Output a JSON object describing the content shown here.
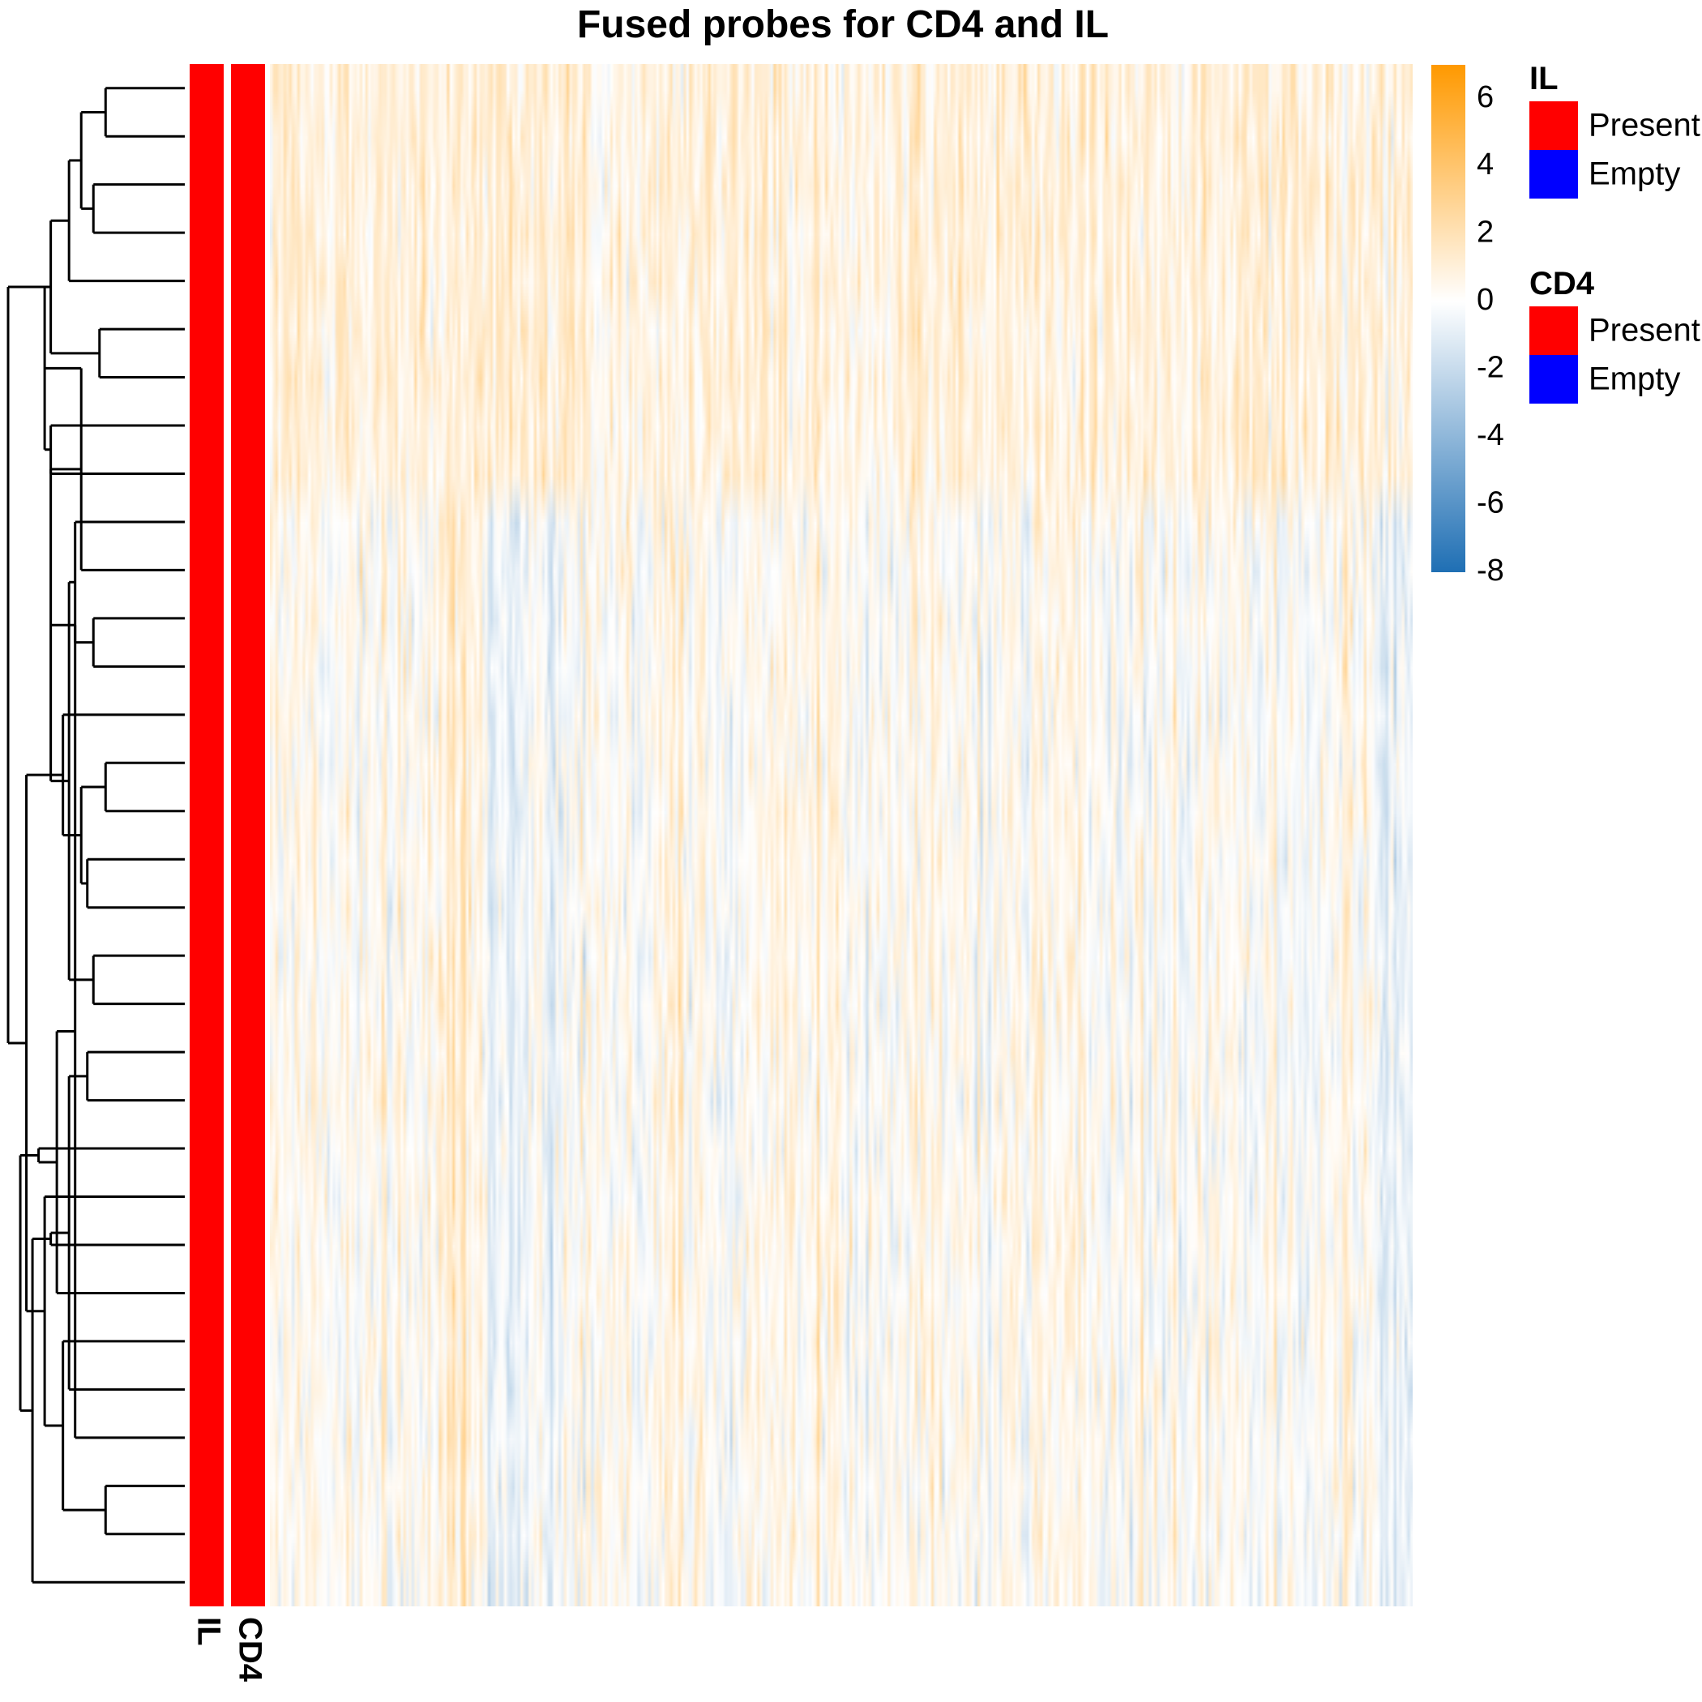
{
  "chart_data": {
    "type": "heatmap",
    "title": "Fused probes for CD4 and IL",
    "n_rows": 32,
    "n_cols": 420,
    "colorbar": {
      "min": -8,
      "max": 7,
      "ticks": [
        6,
        4,
        2,
        0,
        -2,
        -4,
        -6,
        -8
      ],
      "tick_labels": [
        "6",
        "4",
        "2",
        "0",
        "-2",
        "-4",
        "-6",
        "-8"
      ],
      "low_color": "#1f6fb4",
      "mid_color": "#ffffff",
      "high_color": "#ff9900"
    },
    "annotations": [
      {
        "name": "IL",
        "track_label": "IL",
        "values": "Present",
        "legend_title": "IL",
        "levels": [
          {
            "label": "Present",
            "color": "#ff0000"
          },
          {
            "label": "Empty",
            "color": "#0000ff"
          }
        ]
      },
      {
        "name": "CD4",
        "track_label": "CD4",
        "values": "Present",
        "legend_title": "CD4",
        "levels": [
          {
            "label": "Present",
            "color": "#ff0000"
          },
          {
            "label": "Empty",
            "color": "#0000ff"
          }
        ]
      }
    ],
    "row_groups": [
      {
        "rows": [
          0,
          8
        ],
        "pattern": "warm-dominant"
      },
      {
        "rows": [
          9,
          31
        ],
        "pattern": "mixed"
      }
    ],
    "dendrogram": {
      "n_leaves": 32,
      "merges": [
        [
          0,
          1,
          0.13
        ],
        [
          2,
          3,
          0.15
        ],
        [
          32,
          33,
          0.17
        ],
        [
          5,
          6,
          0.14
        ],
        [
          4,
          34,
          0.19
        ],
        [
          35,
          36,
          0.22
        ],
        [
          7,
          8,
          0.22
        ],
        [
          37,
          38,
          0.23
        ],
        [
          11,
          12,
          0.15
        ],
        [
          10,
          39,
          0.17
        ],
        [
          9,
          40,
          0.18
        ],
        [
          14,
          15,
          0.13
        ],
        [
          16,
          17,
          0.16
        ],
        [
          18,
          19,
          0.15
        ],
        [
          43,
          44,
          0.17
        ],
        [
          42,
          45,
          0.19
        ],
        [
          13,
          46,
          0.2
        ],
        [
          41,
          47,
          0.22
        ],
        [
          20,
          21,
          0.16
        ],
        [
          29,
          30,
          0.13
        ],
        [
          28,
          49,
          0.18
        ],
        [
          27,
          50,
          0.19
        ],
        [
          26,
          51,
          0.2
        ],
        [
          25,
          52,
          0.21
        ],
        [
          24,
          53,
          0.22
        ],
        [
          23,
          54,
          0.23
        ],
        [
          22,
          55,
          0.24
        ],
        [
          31,
          56,
          0.25
        ],
        [
          48,
          57,
          0.26
        ],
        [
          58,
          59,
          0.27
        ],
        [
          37,
          60,
          0.29
        ]
      ],
      "root_height": 0.29
    }
  }
}
